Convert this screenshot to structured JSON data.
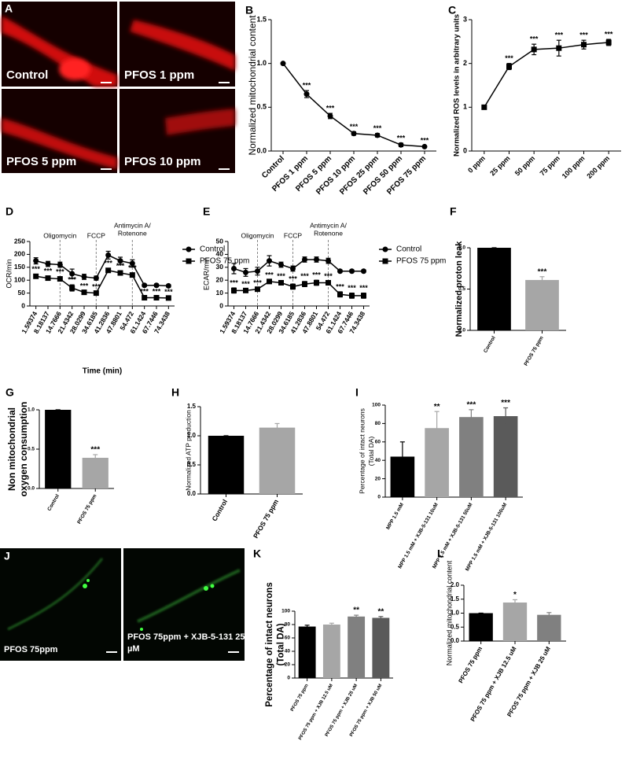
{
  "image_panels": [
    {
      "panel": "A",
      "labels": [
        "Control",
        "PFOS 1 ppm",
        "PFOS 5 ppm",
        "PFOS 10 ppm"
      ]
    },
    {
      "panel": "J",
      "labels": [
        "PFOS 75ppm",
        [
          "PFOS 75ppm + XJB-5-131 25",
          "µM"
        ]
      ]
    }
  ],
  "chart_data": [
    {
      "type": "line",
      "panel": "B",
      "ylabel": "Normalized mitochondrial content",
      "categories": [
        "Control",
        "PFOS 1 ppm",
        "PFOS 5 ppm",
        "PFOS 10 ppm",
        "PFOS 25 ppm",
        "PFOS 50 ppm",
        "PFOS 75 ppm"
      ],
      "series": [
        {
          "color": "#000000",
          "marker": "circle",
          "values": [
            1.0,
            0.65,
            0.4,
            0.2,
            0.18,
            0.07,
            0.05
          ],
          "errors": [
            0,
            0.04,
            0.03,
            0.02,
            0.02,
            0.02,
            0.01
          ],
          "significance": [
            null,
            "***",
            "***",
            "***",
            "***",
            "***",
            "***"
          ]
        }
      ],
      "ylim": [
        0,
        1.5
      ],
      "yticks": [
        {
          "value": 0,
          "label": "0.0"
        },
        {
          "value": 0.5,
          "label": "0.5"
        },
        {
          "value": 1,
          "label": "1.0"
        },
        {
          "value": 1.5,
          "label": "1.5"
        }
      ]
    },
    {
      "type": "line",
      "panel": "C",
      "ylabel": "Normalized ROS levels in arbitrary units",
      "categories": [
        "0 ppm",
        "25 ppm",
        "50 ppm",
        "75 ppm",
        "100 ppm",
        "200 ppm"
      ],
      "series": [
        {
          "color": "#000000",
          "marker": "square",
          "values": [
            1.0,
            1.93,
            2.32,
            2.35,
            2.43,
            2.48
          ],
          "errors": [
            0.02,
            0.07,
            0.12,
            0.18,
            0.1,
            0.07
          ],
          "significance": [
            null,
            "***",
            "***",
            "***",
            "***",
            "***"
          ]
        }
      ],
      "ylim": [
        0,
        3
      ],
      "yticks": [
        0,
        1,
        2,
        3
      ]
    },
    {
      "type": "line",
      "panel": "D",
      "ylabel": "OCR/min",
      "xlabel": "Time (min)",
      "categories": [
        "1.59374",
        "8.18137",
        "14.7666",
        "21.4342",
        "28.0299",
        "34.6185",
        "41.2836",
        "47.8801",
        "54.472",
        "61.1424",
        "67.7446",
        "74.3438"
      ],
      "annotations": [
        "Oligomycin",
        "FCCP",
        [
          "Antimycin A/",
          "Rotenone"
        ]
      ],
      "series": [
        {
          "name": "Control",
          "color": "#000000",
          "marker": "circle",
          "values": [
            175,
            163,
            160,
            125,
            113,
            108,
            197,
            175,
            165,
            80,
            80,
            78
          ],
          "errors": [
            12,
            10,
            10,
            18,
            10,
            8,
            15,
            14,
            14,
            5,
            5,
            5
          ],
          "significance": [
            null,
            null,
            null,
            null,
            null,
            null,
            null,
            null,
            null,
            null,
            null,
            null
          ]
        },
        {
          "name": "PFOS 75 ppm",
          "color": "#000000",
          "marker": "square",
          "values": [
            115,
            108,
            105,
            70,
            53,
            50,
            138,
            128,
            120,
            32,
            32,
            31
          ],
          "errors": [
            8,
            8,
            8,
            12,
            5,
            5,
            8,
            8,
            8,
            4,
            4,
            4
          ],
          "significance": [
            "***",
            "***",
            "***",
            "***",
            "***",
            "***",
            "***",
            "***",
            "***",
            "***",
            "***",
            "***"
          ]
        }
      ],
      "ylim": [
        0,
        250
      ],
      "yticks": [
        0,
        50,
        100,
        150,
        200,
        250
      ]
    },
    {
      "type": "line",
      "panel": "E",
      "ylabel": "ECAR/min",
      "categories": [
        "1.59374",
        "8.18137",
        "14.7666",
        "21.4342",
        "28.0299",
        "34.6185",
        "41.2836",
        "47.8801",
        "54.472",
        "61.1424",
        "67.7446",
        "74.3438"
      ],
      "annotations": [
        "Oligomycin",
        "FCCP",
        [
          "Antimycin A/",
          "Rotenone"
        ]
      ],
      "series": [
        {
          "name": "Control",
          "color": "#000000",
          "marker": "circle",
          "values": [
            29,
            26,
            27,
            35,
            32,
            29,
            36,
            36,
            35,
            27,
            27,
            27
          ],
          "errors": [
            4,
            3,
            3,
            4,
            2,
            2,
            2,
            2,
            2,
            1,
            1,
            1
          ],
          "significance": [
            null,
            null,
            null,
            null,
            null,
            null,
            null,
            null,
            null,
            null,
            null,
            null
          ]
        },
        {
          "name": "PFOS 75 ppm",
          "color": "#000000",
          "marker": "square",
          "values": [
            12,
            12,
            13,
            19,
            18,
            15,
            17,
            18,
            18,
            9,
            8,
            8
          ],
          "errors": [
            2,
            1,
            1,
            1,
            1,
            2,
            2,
            2,
            1,
            2,
            2,
            2
          ],
          "significance": [
            "***",
            "***",
            "***",
            "***",
            "***",
            "***",
            "***",
            "***",
            "***",
            "***",
            "***",
            "***"
          ]
        }
      ],
      "ylim": [
        0,
        50
      ],
      "yticks": [
        0,
        10,
        20,
        30,
        40,
        50
      ]
    },
    {
      "type": "bar",
      "panel": "F",
      "ylabel": "Normalized proton leak",
      "categories": [
        "Control",
        "PFOS 75 ppm"
      ],
      "values": [
        1.0,
        0.61
      ],
      "errors": [
        0,
        0.04
      ],
      "colors": [
        "#000000",
        "#a6a6a6"
      ],
      "significance": [
        null,
        "***"
      ],
      "ylim": [
        0,
        1
      ],
      "yticks": [
        {
          "value": 0,
          "label": "0.0"
        },
        {
          "value": 0.5,
          "label": "0.5"
        },
        {
          "value": 1,
          "label": "1.0"
        }
      ]
    },
    {
      "type": "bar",
      "panel": "G",
      "ylabel": [
        "Non mitochondrial",
        "oxygen consumption"
      ],
      "categories": [
        "Control",
        "PFOS 75 ppm"
      ],
      "values": [
        1.0,
        0.39
      ],
      "errors": [
        0,
        0.04
      ],
      "colors": [
        "#000000",
        "#a6a6a6"
      ],
      "significance": [
        null,
        "***"
      ],
      "ylim": [
        0,
        1
      ],
      "yticks": [
        {
          "value": 0,
          "label": "0.0"
        },
        {
          "value": 0.5,
          "label": "0.5"
        },
        {
          "value": 1,
          "label": "1.0"
        }
      ]
    },
    {
      "type": "bar",
      "panel": "H",
      "ylabel": "Normalized ATP production",
      "categories": [
        "Control",
        "PFOS 75 ppm"
      ],
      "values": [
        1.0,
        1.14
      ],
      "errors": [
        0,
        0.07
      ],
      "colors": [
        "#000000",
        "#a6a6a6"
      ],
      "significance": [
        null,
        null
      ],
      "ylim": [
        0,
        1.5
      ],
      "yticks": [
        {
          "value": 0,
          "label": "0.0"
        },
        {
          "value": 0.5,
          "label": "0.5"
        },
        {
          "value": 1,
          "label": "1.0"
        },
        {
          "value": 1.5,
          "label": "1.5"
        }
      ]
    },
    {
      "type": "bar",
      "panel": "I",
      "ylabel": [
        "Percentage of intact neurons",
        "(Total DA)"
      ],
      "categories": [
        "MPP 1.5 mM",
        "MPP 1.5 mM + XJB-5-131 10uM",
        "MPP 1.5 mM + XJB-5-131 50uM",
        "MPP 1.5 mM + XJB-5-131 100uM"
      ],
      "values": [
        44,
        75,
        87,
        88
      ],
      "errors": [
        16,
        18,
        8,
        9
      ],
      "colors": [
        "#000000",
        "#a6a6a6",
        "#808080",
        "#5a5a5a"
      ],
      "significance": [
        null,
        "**",
        "***",
        "***"
      ],
      "ylim": [
        0,
        100
      ],
      "yticks": [
        0,
        20,
        40,
        60,
        80,
        100
      ]
    },
    {
      "type": "bar",
      "panel": "K",
      "ylabel": [
        "Percentage of intact neurons",
        "(Total DA)"
      ],
      "categories": [
        "PFOS 75 ppm",
        "PFOS 75 ppm + XJB 12.5 uM",
        "PFOS 75 ppm + XJB 25 uM",
        "PFOS 75 ppm + XJB 50 uM"
      ],
      "values": [
        77,
        80,
        92,
        90
      ],
      "errors": [
        2,
        2,
        2,
        2
      ],
      "colors": [
        "#000000",
        "#a6a6a6",
        "#808080",
        "#5a5a5a"
      ],
      "significance": [
        null,
        null,
        "**",
        "**"
      ],
      "ylim": [
        0,
        100
      ],
      "yticks": [
        0,
        20,
        40,
        60,
        80,
        100
      ]
    },
    {
      "type": "bar",
      "panel": "L",
      "ylabel": "Normalized mitochondrial content",
      "categories": [
        "PFOS 75 ppm",
        "PFOS 75 ppm + XJB 12.5 uM",
        "PFOS 75 ppm + XJB 25 uM"
      ],
      "values": [
        1.0,
        1.38,
        0.94
      ],
      "errors": [
        0,
        0.1,
        0.08
      ],
      "colors": [
        "#000000",
        "#a6a6a6",
        "#808080"
      ],
      "significance": [
        null,
        "*",
        null
      ],
      "ylim": [
        0,
        2
      ],
      "yticks": [
        {
          "value": 0,
          "label": "0.0"
        },
        {
          "value": 0.5,
          "label": "0.5"
        },
        {
          "value": 1,
          "label": "1.0"
        },
        {
          "value": 1.5,
          "label": "1.5"
        },
        {
          "value": 2,
          "label": "2.0"
        }
      ]
    }
  ]
}
